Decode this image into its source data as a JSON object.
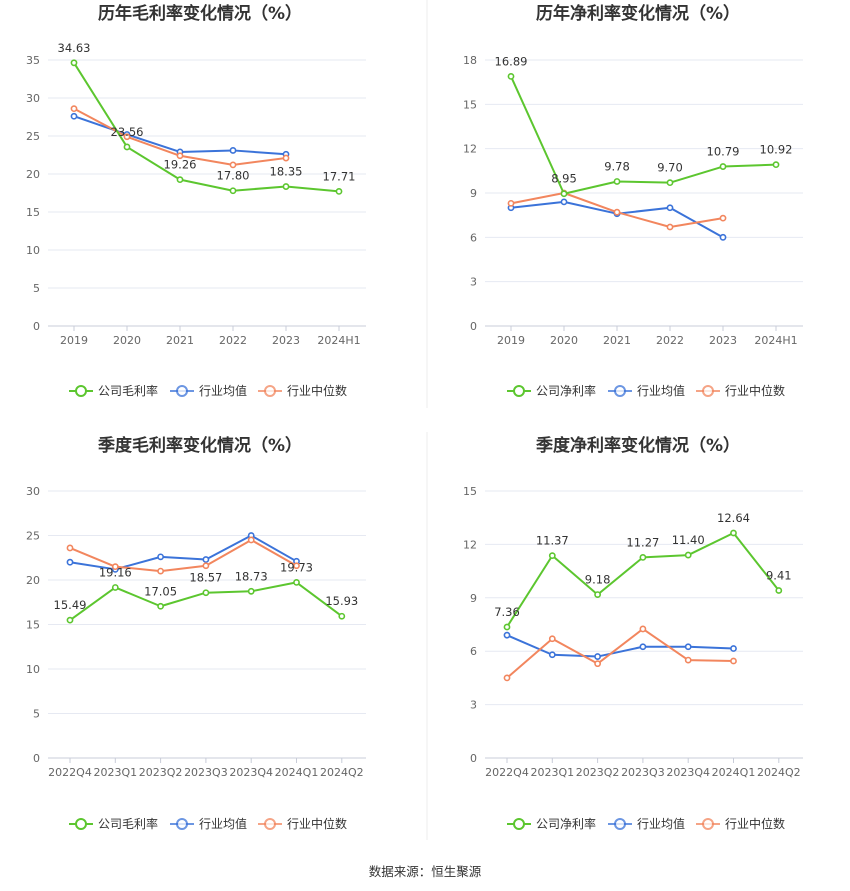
{
  "source": "数据来源：恒生聚源",
  "colors": {
    "company": "#5cc62f",
    "industry_avg": "#3b73d9",
    "industry_median": "#f2865e",
    "grid": "#e6e9f2",
    "axis": "#c8ccd8"
  },
  "chart_data": [
    {
      "type": "line",
      "title": "历年毛利率变化情况（%）",
      "categories": [
        "2019",
        "2020",
        "2021",
        "2022",
        "2023",
        "2024H1"
      ],
      "ylim": [
        0,
        35
      ],
      "yticks": [
        0,
        5,
        10,
        15,
        20,
        25,
        30,
        35
      ],
      "series": [
        {
          "name": "公司毛利率",
          "key": "company",
          "values": [
            34.63,
            23.56,
            19.26,
            17.8,
            18.35,
            17.71
          ],
          "labels": [
            "34.63",
            "23.56",
            "19.26",
            "17.80",
            "18.35",
            "17.71"
          ]
        },
        {
          "name": "行业均值",
          "key": "industry_avg",
          "values": [
            27.6,
            25.2,
            22.9,
            23.1,
            22.6,
            null
          ]
        },
        {
          "name": "行业中位数",
          "key": "industry_median",
          "values": [
            28.6,
            24.9,
            22.4,
            21.2,
            22.1,
            null
          ]
        }
      ]
    },
    {
      "type": "line",
      "title": "历年净利率变化情况（%）",
      "categories": [
        "2019",
        "2020",
        "2021",
        "2022",
        "2023",
        "2024H1"
      ],
      "ylim": [
        0,
        18
      ],
      "yticks": [
        0,
        3,
        6,
        9,
        12,
        15,
        18
      ],
      "series": [
        {
          "name": "公司净利率",
          "key": "company",
          "values": [
            16.89,
            8.95,
            9.78,
            9.7,
            10.79,
            10.92
          ],
          "labels": [
            "16.89",
            "8.95",
            "9.78",
            "9.70",
            "10.79",
            "10.92"
          ]
        },
        {
          "name": "行业均值",
          "key": "industry_avg",
          "values": [
            8.0,
            8.4,
            7.6,
            8.0,
            6.0,
            null
          ]
        },
        {
          "name": "行业中位数",
          "key": "industry_median",
          "values": [
            8.3,
            9.0,
            7.7,
            6.7,
            7.3,
            null
          ]
        }
      ]
    },
    {
      "type": "line",
      "title": "季度毛利率变化情况（%）",
      "categories": [
        "2022Q4",
        "2023Q1",
        "2023Q2",
        "2023Q3",
        "2023Q4",
        "2024Q1",
        "2024Q2"
      ],
      "ylim": [
        0,
        30
      ],
      "yticks": [
        0,
        5,
        10,
        15,
        20,
        25,
        30
      ],
      "series": [
        {
          "name": "公司毛利率",
          "key": "company",
          "values": [
            15.49,
            19.16,
            17.05,
            18.57,
            18.73,
            19.73,
            15.93
          ],
          "labels": [
            "15.49",
            "19.16",
            "17.05",
            "18.57",
            "18.73",
            "19.73",
            "15.93"
          ]
        },
        {
          "name": "行业均值",
          "key": "industry_avg",
          "values": [
            22.0,
            21.2,
            22.6,
            22.3,
            25.0,
            22.1,
            null
          ]
        },
        {
          "name": "行业中位数",
          "key": "industry_median",
          "values": [
            23.6,
            21.5,
            21.0,
            21.6,
            24.5,
            21.6,
            null
          ]
        }
      ]
    },
    {
      "type": "line",
      "title": "季度净利率变化情况（%）",
      "categories": [
        "2022Q4",
        "2023Q1",
        "2023Q2",
        "2023Q3",
        "2023Q4",
        "2024Q1",
        "2024Q2"
      ],
      "ylim": [
        0,
        15
      ],
      "yticks": [
        0,
        3,
        6,
        9,
        12,
        15
      ],
      "series": [
        {
          "name": "公司净利率",
          "key": "company",
          "values": [
            7.36,
            11.37,
            9.18,
            11.27,
            11.4,
            12.64,
            9.41
          ],
          "labels": [
            "7.36",
            "11.37",
            "9.18",
            "11.27",
            "11.40",
            "12.64",
            "9.41"
          ]
        },
        {
          "name": "行业均值",
          "key": "industry_avg",
          "values": [
            6.9,
            5.8,
            5.7,
            6.25,
            6.25,
            6.15,
            null
          ]
        },
        {
          "name": "行业中位数",
          "key": "industry_median",
          "values": [
            4.5,
            6.7,
            5.3,
            7.25,
            5.5,
            5.45,
            null
          ]
        }
      ]
    }
  ]
}
